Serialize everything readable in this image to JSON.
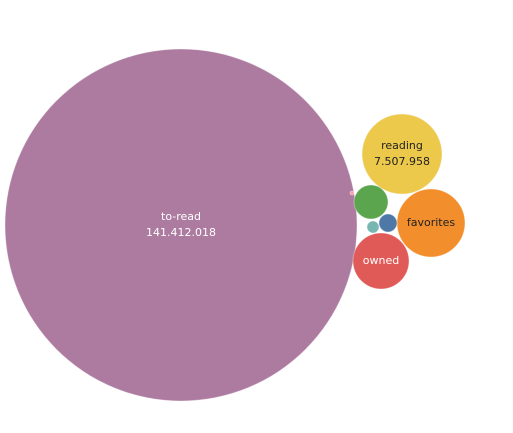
{
  "chart_data": {
    "type": "bubble",
    "title": "",
    "items": [
      {
        "name": "to-read",
        "value": "141.412.018",
        "color": "#ad7aa0",
        "label_color": "#ffffff",
        "show_label": true,
        "show_value": true
      },
      {
        "name": "reading",
        "value": "7.507.958",
        "color": "#ecc94b",
        "label_color": "#222222",
        "show_label": true,
        "show_value": true
      },
      {
        "name": "favorites",
        "value": "",
        "color": "#f28f2c",
        "label_color": "#222222",
        "show_label": true,
        "show_value": false
      },
      {
        "name": "owned",
        "value": "",
        "color": "#e05a58",
        "label_color": "#ffffff",
        "show_label": true,
        "show_value": false
      },
      {
        "name": "",
        "value": "",
        "color": "#5aa54e",
        "label_color": "#ffffff",
        "show_label": false,
        "show_value": false
      },
      {
        "name": "",
        "value": "",
        "color": "#4e79a7",
        "label_color": "#ffffff",
        "show_label": false,
        "show_value": false
      },
      {
        "name": "",
        "value": "",
        "color": "#76b7b2",
        "label_color": "#ffffff",
        "show_label": false,
        "show_value": false
      },
      {
        "name": "",
        "value": "",
        "color": "#ff9da7",
        "label_color": "#ffffff",
        "show_label": false,
        "show_value": false
      }
    ]
  }
}
